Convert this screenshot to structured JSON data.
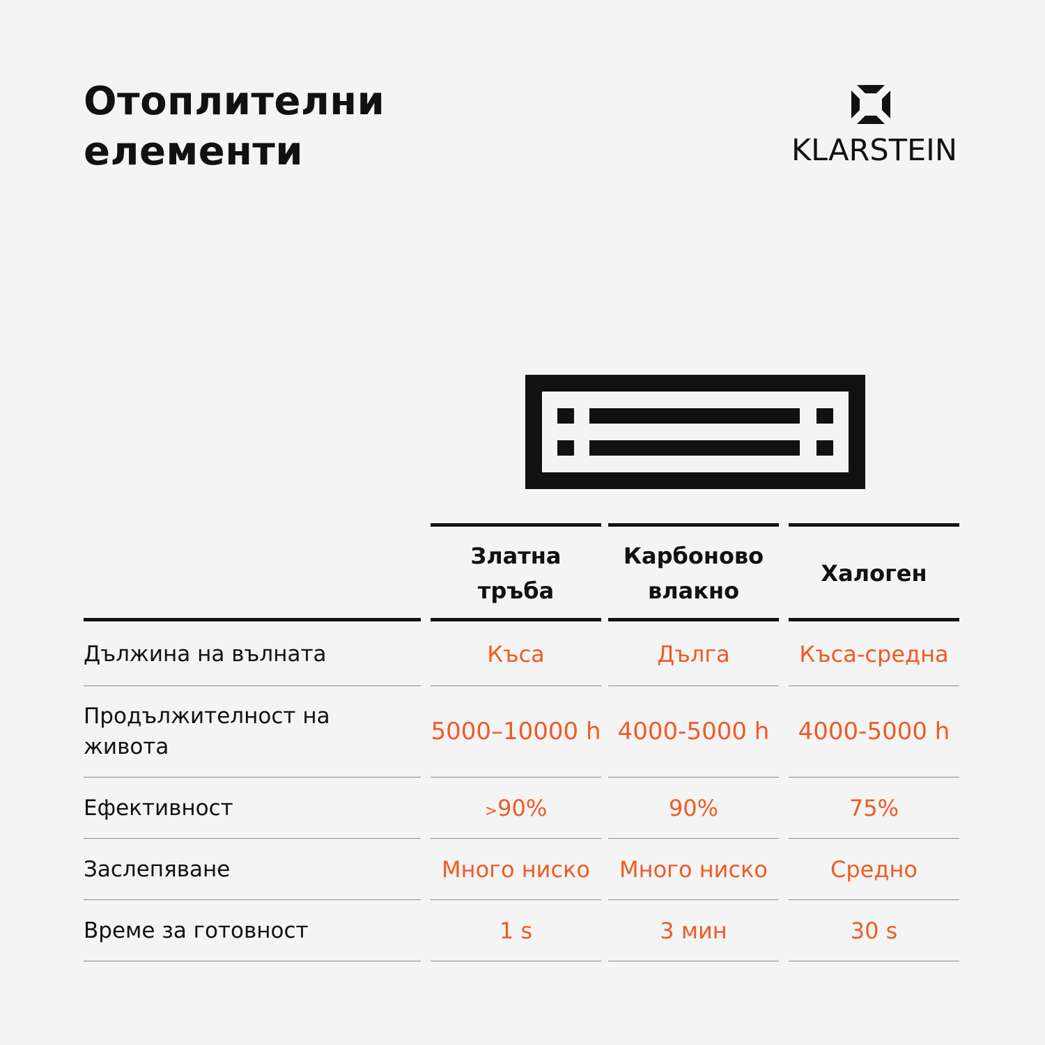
{
  "title": {
    "line1": "Отоплителни",
    "line2": "елементи"
  },
  "logo": {
    "brand": "KLARSTEIN",
    "mark_icon": "klarstein-logo-mark"
  },
  "illustration": {
    "icon": "infrared-heater-icon"
  },
  "table": {
    "columns": [
      "Златна тръба",
      "Карбоново влакно",
      "Халоген"
    ],
    "column_lines": [
      [
        "Златна тръба"
      ],
      [
        "Карбоново",
        "влакно"
      ],
      [
        "Халоген"
      ]
    ],
    "rows": [
      {
        "label": "Дължина на вълната",
        "values": [
          "Къса",
          "Дълга",
          "Къса-средна"
        ]
      },
      {
        "label": "Продължителност на живота",
        "label_lines": [
          "Продължителност на",
          "живота"
        ],
        "values": [
          "5000–10000 h",
          "4000-5000 h",
          "4000-5000 h"
        ]
      },
      {
        "label": "Ефективност",
        "values": [
          ">90%",
          "90%",
          "75%"
        ],
        "value_parts": [
          {
            "prefix": ">",
            "main": "90%"
          }
        ]
      },
      {
        "label": "Заслепяване",
        "values": [
          "Много ниско",
          "Много ниско",
          "Средно"
        ]
      },
      {
        "label": "Време за готовност",
        "values": [
          "1 s",
          "3 мин",
          "30 s"
        ]
      }
    ]
  },
  "colors": {
    "accent": "#f05a24",
    "text": "#111111",
    "background": "#f4f4f4",
    "rule": "#8a8a8a"
  }
}
